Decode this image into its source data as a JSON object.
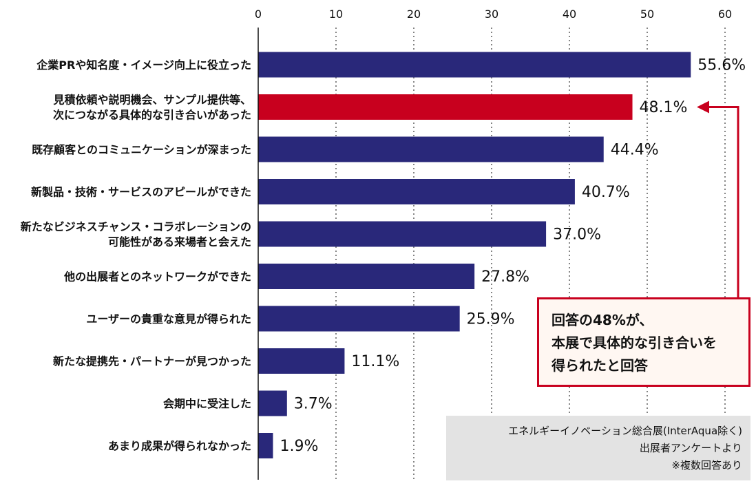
{
  "chart_data": {
    "type": "bar",
    "orientation": "horizontal",
    "xlim": [
      0,
      60
    ],
    "x_ticks": [
      "0",
      "10",
      "20",
      "30",
      "40",
      "50",
      "60"
    ],
    "grid": "vertical dotted",
    "categories": [
      [
        "企業PRや知名度・イメージ向上に役立った"
      ],
      [
        "見積依頼や説明機会、サンプル提供等、",
        "次につながる具体的な引き合いがあった"
      ],
      [
        "既存顧客とのコミュニケーションが深まった"
      ],
      [
        "新製品・技術・サービスのアピールができた"
      ],
      [
        "新たなビジネスチャンス・コラボレーションの",
        "可能性がある来場者と会えた"
      ],
      [
        "他の出展者とのネットワークができた"
      ],
      [
        "ユーザーの貴重な意見が得られた"
      ],
      [
        "新たな提携先・パートナーが見つかった"
      ],
      [
        "会期中に受注した"
      ],
      [
        "あまり成果が得られなかった"
      ]
    ],
    "values": [
      55.6,
      48.1,
      44.4,
      40.7,
      37.0,
      27.8,
      25.9,
      11.1,
      3.7,
      1.9
    ],
    "value_labels": [
      "55.6%",
      "48.1%",
      "44.4%",
      "40.7%",
      "37.0%",
      "27.8%",
      "25.9%",
      "11.1%",
      "3.7%",
      "1.9%"
    ],
    "highlight_index": 1,
    "colors": {
      "bar": "#29287a",
      "highlight": "#c8001e",
      "grid": "#333333",
      "axis": "#111111"
    }
  },
  "callout": {
    "lines": [
      "回答の48%が、",
      "本展で具体的な引き合いを",
      "得られたと回答"
    ],
    "border_color": "#c8001e",
    "background": "#fff7f2"
  },
  "source_note": {
    "lines": [
      "エネルギーイノベーション総合展(InterAqua除く)",
      "出展者アンケートより",
      "※複数回答あり"
    ],
    "background": "#e3e3e3"
  }
}
